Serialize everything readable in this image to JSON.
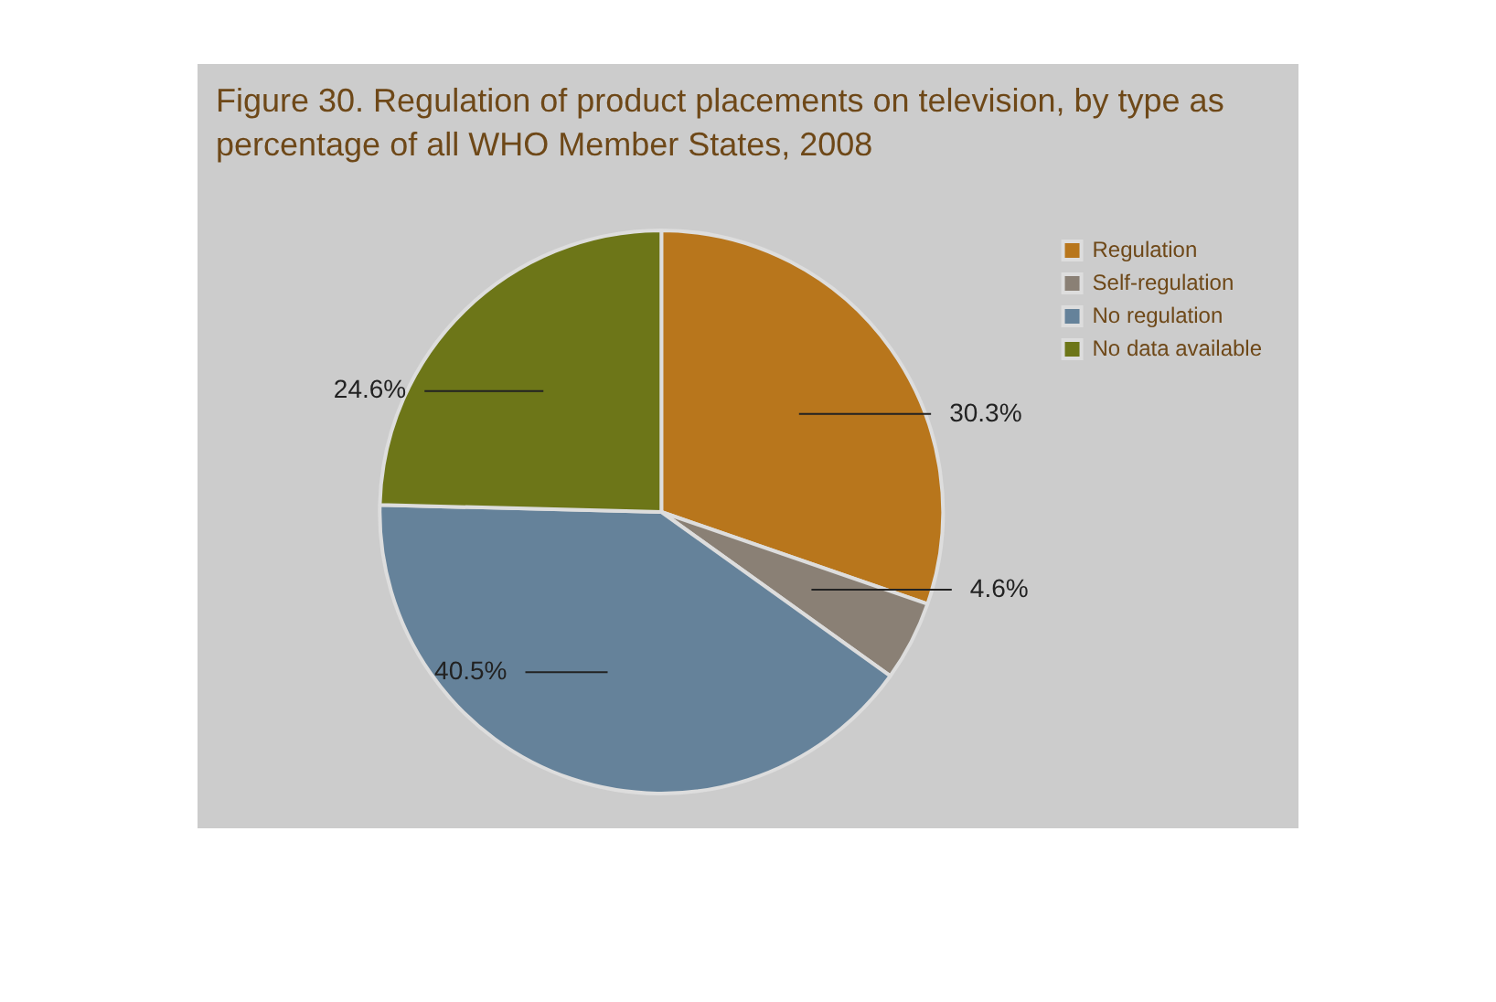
{
  "chart_data": {
    "type": "pie",
    "title": "Figure 30. Regulation of product placements on television, by type as percentage of all WHO Member States, 2008",
    "categories": [
      "Regulation",
      "Self-regulation",
      "No regulation",
      "No data available"
    ],
    "values": [
      30.3,
      4.6,
      40.5,
      24.6
    ],
    "colors": [
      "#b8761c",
      "#8a8075",
      "#65829a",
      "#6d7618"
    ],
    "value_labels": [
      "30.3%",
      "4.6%",
      "40.5%",
      "24.6%"
    ],
    "legend": "right"
  }
}
